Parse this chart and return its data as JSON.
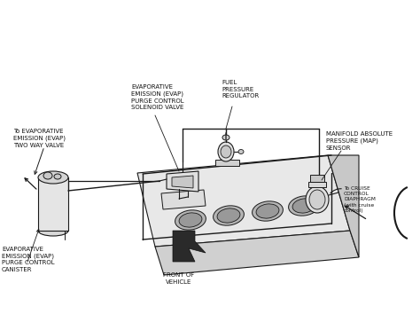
{
  "background_color": "#ffffff",
  "line_color": "#1a1a1a",
  "text_color": "#111111",
  "labels": {
    "evap_purge_solenoid": "EVAPORATIVE\nEMISSION (EVAP)\nPURGE CONTROL\nSOLENOID VALVE",
    "fuel_pressure_reg": "FUEL\nPRESSURE\nREGULATOR",
    "to_evap_two_way": "To EVAPORATIVE\nEMISSION (EVAP)\nTWO WAY VALVE",
    "map_sensor": "MANIFOLD ABSOLUTE\nPRESSURE (MAP)\nSENSOR",
    "to_cruise": "To CRUISE\nCONTROL\nDIAPHRAGM\n(with cruise\ncontrol)",
    "evap_canister": "EVAPORATIVE\nEMISSION (EVAP)\nPURGE CONTROL\nCANISTER",
    "front_of_vehicle": "FRONT OF\nVEHICLE"
  },
  "font_size": 5.0,
  "font_size_small": 4.2
}
